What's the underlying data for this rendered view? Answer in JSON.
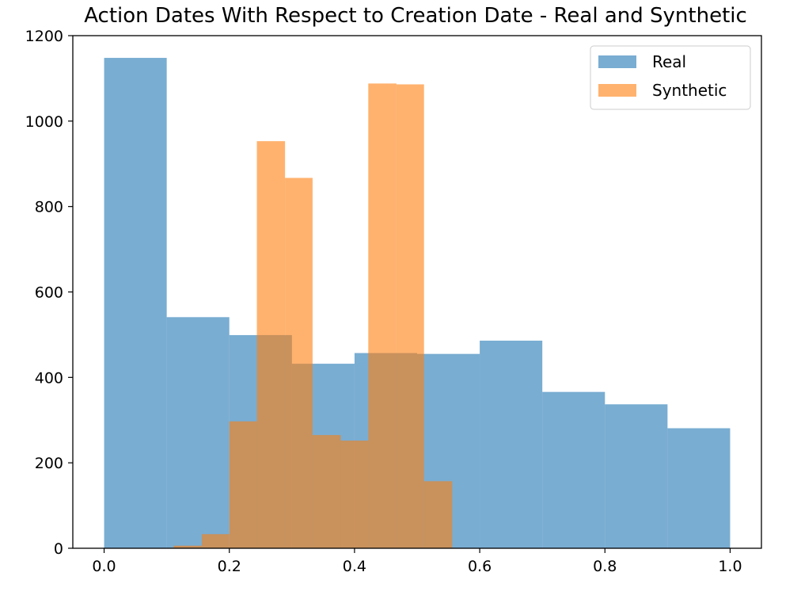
{
  "chart_data": {
    "type": "bar",
    "title": "Action Dates With Respect to Creation Date - Real and Synthetic",
    "xlabel": "",
    "ylabel": "",
    "xlim": [
      -0.05,
      1.05
    ],
    "ylim": [
      0,
      1200
    ],
    "x_ticks": [
      "0.0",
      "0.2",
      "0.4",
      "0.6",
      "0.8",
      "1.0"
    ],
    "y_ticks": [
      "0",
      "200",
      "400",
      "600",
      "800",
      "1000",
      "1200"
    ],
    "grid": false,
    "legend_placement": "top-right",
    "series": [
      {
        "name": "Real",
        "color": "#1f77b4",
        "opacity": 0.6,
        "bin_edges": [
          0.0,
          0.1,
          0.2,
          0.3,
          0.4,
          0.5,
          0.6,
          0.7,
          0.8,
          0.9,
          1.0
        ],
        "counts": [
          1148,
          541,
          499,
          432,
          457,
          455,
          486,
          366,
          337,
          281
        ]
      },
      {
        "name": "Synthetic",
        "color": "#ff7f0e",
        "opacity": 0.6,
        "bin_edges": [
          0.111,
          0.156,
          0.2,
          0.244,
          0.289,
          0.333,
          0.378,
          0.422,
          0.467,
          0.511,
          0.556
        ],
        "counts": [
          6,
          33,
          297,
          953,
          867,
          265,
          252,
          1088,
          1086,
          157
        ]
      }
    ]
  }
}
